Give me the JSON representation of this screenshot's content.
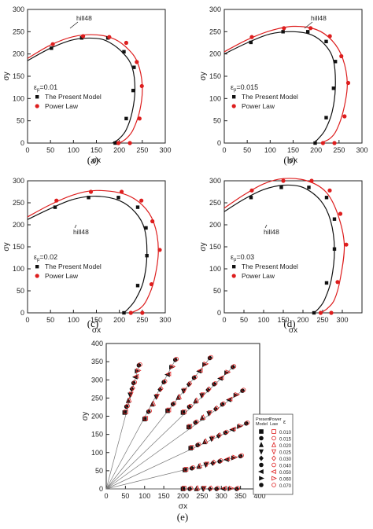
{
  "colors": {
    "model": "#111111",
    "power": "#dd1e1e",
    "axis": "#222222",
    "grid_ray": "#777777"
  },
  "chart_data": [
    {
      "panel": "(a)",
      "type": "scatter",
      "xlabel": "σx",
      "ylabel": "σy",
      "xlim": [
        0,
        300
      ],
      "ylim": [
        0,
        300
      ],
      "xticks": [
        "0",
        "50",
        "100",
        "150",
        "200",
        "250",
        "300"
      ],
      "yticks": [
        "0",
        "50",
        "100",
        "150",
        "200",
        "250",
        "300"
      ],
      "strain_label": "ε",
      "strain_value": "=0.01",
      "curve_label": "hill48",
      "legend": [
        "The Present Model",
        "Power Law"
      ],
      "series": [
        {
          "name": "The Present Model",
          "marker": "square",
          "x": [
            52,
            118,
            175,
            210,
            232,
            230,
            215,
            191
          ],
          "y": [
            213,
            236,
            236,
            205,
            170,
            118,
            55,
            0
          ]
        },
        {
          "name": "Power Law",
          "marker": "circle",
          "x": [
            55,
            121,
            178,
            215,
            238,
            249,
            244,
            223,
            198
          ],
          "y": [
            222,
            240,
            238,
            225,
            182,
            128,
            55,
            0,
            0
          ]
        }
      ],
      "curves": [
        {
          "series": "The Present Model",
          "x": [
            0,
            50,
            100,
            150,
            180,
            210,
            228,
            234,
            228,
            215,
            200,
            185
          ],
          "y": [
            185,
            213,
            232,
            235,
            225,
            200,
            170,
            120,
            70,
            30,
            10,
            0
          ]
        },
        {
          "series": "Power Law",
          "x": [
            0,
            50,
            100,
            150,
            190,
            220,
            240,
            250,
            245,
            230,
            215,
            200
          ],
          "y": [
            190,
            220,
            239,
            243,
            233,
            210,
            180,
            128,
            75,
            30,
            10,
            0
          ]
        }
      ]
    },
    {
      "panel": "(b)",
      "type": "scatter",
      "xlabel": "σx",
      "ylabel": "σy",
      "xlim": [
        0,
        300
      ],
      "ylim": [
        0,
        300
      ],
      "xticks": [
        "0",
        "50",
        "100",
        "150",
        "200",
        "250",
        "300"
      ],
      "yticks": [
        "0",
        "50",
        "100",
        "150",
        "200",
        "250",
        "300"
      ],
      "strain_label": "ε",
      "strain_value": "=0.015",
      "curve_label": "hill48",
      "legend": [
        "The Present Model",
        "Power Law"
      ],
      "series": [
        {
          "name": "The Present Model",
          "marker": "square",
          "x": [
            58,
            128,
            182,
            222,
            242,
            238,
            222,
            198
          ],
          "y": [
            226,
            250,
            250,
            228,
            183,
            123,
            57,
            0
          ]
        },
        {
          "name": "Power Law",
          "marker": "circle",
          "x": [
            60,
            130,
            188,
            230,
            255,
            270,
            262,
            240,
            215
          ],
          "y": [
            238,
            258,
            258,
            240,
            195,
            135,
            60,
            0,
            0
          ]
        }
      ],
      "curves": [
        {
          "series": "The Present Model",
          "x": [
            0,
            50,
            100,
            150,
            190,
            220,
            238,
            242,
            235,
            220,
            205,
            195
          ],
          "y": [
            200,
            225,
            245,
            250,
            243,
            220,
            185,
            125,
            70,
            30,
            10,
            0
          ]
        },
        {
          "series": "Power Law",
          "x": [
            0,
            50,
            100,
            150,
            200,
            235,
            258,
            268,
            260,
            245,
            230,
            210
          ],
          "y": [
            205,
            232,
            252,
            262,
            255,
            230,
            190,
            133,
            75,
            30,
            10,
            0
          ]
        }
      ]
    },
    {
      "panel": "(c)",
      "type": "scatter",
      "xlabel": "σx",
      "ylabel": "σy",
      "xlim": [
        0,
        300
      ],
      "ylim": [
        0,
        300
      ],
      "xticks": [
        "0",
        "50",
        "100",
        "150",
        "200",
        "250",
        "300"
      ],
      "yticks": [
        "0",
        "50",
        "100",
        "150",
        "200",
        "250",
        "300"
      ],
      "strain_label": "ε",
      "strain_value": "=0.02",
      "curve_label": "hill48",
      "legend": [
        "The Present Model",
        "Power Law"
      ],
      "series": [
        {
          "name": "The Present Model",
          "marker": "square",
          "x": [
            60,
            133,
            198,
            240,
            258,
            260,
            240,
            210
          ],
          "y": [
            240,
            262,
            262,
            240,
            193,
            130,
            62,
            0
          ]
        },
        {
          "name": "Power Law",
          "marker": "circle",
          "x": [
            63,
            138,
            205,
            248,
            272,
            288,
            270,
            250,
            225
          ],
          "y": [
            255,
            275,
            275,
            255,
            208,
            143,
            65,
            0,
            0
          ]
        }
      ],
      "curves": [
        {
          "series": "The Present Model",
          "x": [
            0,
            50,
            100,
            150,
            200,
            235,
            255,
            260,
            252,
            235,
            220,
            210
          ],
          "y": [
            212,
            237,
            258,
            265,
            255,
            228,
            190,
            130,
            70,
            30,
            10,
            0
          ]
        },
        {
          "series": "Power Law",
          "x": [
            0,
            50,
            100,
            150,
            210,
            250,
            275,
            285,
            276,
            260,
            245,
            225
          ],
          "y": [
            218,
            246,
            268,
            278,
            270,
            245,
            205,
            143,
            75,
            30,
            10,
            0
          ]
        }
      ]
    },
    {
      "panel": "(d)",
      "type": "scatter",
      "xlabel": "σx",
      "ylabel": "σy",
      "xlim": [
        0,
        350
      ],
      "ylim": [
        0,
        300
      ],
      "xticks": [
        "0",
        "50",
        "100",
        "150",
        "200",
        "250",
        "300"
      ],
      "yticks": [
        "0",
        "50",
        "100",
        "150",
        "200",
        "250",
        "300"
      ],
      "strain_label": "ε",
      "strain_value": "=0.03",
      "curve_label": "hill48",
      "legend": [
        "The Present Model",
        "Power Law"
      ],
      "series": [
        {
          "name": "The Present Model",
          "marker": "square",
          "x": [
            68,
            145,
            215,
            260,
            280,
            280,
            260,
            228
          ],
          "y": [
            262,
            285,
            285,
            262,
            213,
            145,
            68,
            0
          ]
        },
        {
          "name": "Power Law",
          "marker": "circle",
          "x": [
            70,
            150,
            222,
            268,
            295,
            310,
            288,
            272,
            245
          ],
          "y": [
            278,
            300,
            300,
            278,
            225,
            155,
            70,
            0,
            0
          ]
        }
      ],
      "curves": [
        {
          "series": "The Present Model",
          "x": [
            0,
            50,
            100,
            150,
            200,
            245,
            270,
            280,
            272,
            255,
            240,
            228
          ],
          "y": [
            230,
            258,
            280,
            290,
            285,
            255,
            210,
            145,
            75,
            30,
            10,
            0
          ]
        },
        {
          "series": "Power Law",
          "x": [
            0,
            50,
            100,
            150,
            210,
            258,
            288,
            305,
            295,
            280,
            262,
            245
          ],
          "y": [
            238,
            268,
            293,
            305,
            300,
            275,
            225,
            155,
            78,
            30,
            10,
            0
          ]
        }
      ]
    },
    {
      "panel": "(e)",
      "type": "scatter",
      "xlabel": "σx",
      "ylabel": "σy",
      "xlim": [
        0,
        400
      ],
      "ylim": [
        0,
        400
      ],
      "xticks": [
        "0",
        "50",
        "100",
        "150",
        "200",
        "250",
        "300",
        "350",
        "400"
      ],
      "yticks": [
        "0",
        "50",
        "100",
        "150",
        "200",
        "250",
        "300",
        "350",
        "400"
      ],
      "legend_header": {
        "present": "Present Model",
        "power": "Power Law",
        "strain": "ε"
      },
      "strain_levels": [
        "0.010",
        "0.015",
        "0.020",
        "0.025",
        "0.030",
        "0.040",
        "0.050",
        "0.060",
        "0.070"
      ],
      "rays": [
        {
          "end": [
            85,
            340
          ],
          "start": [
            48,
            210
          ],
          "points": 9
        },
        {
          "end": [
            180,
            355
          ],
          "start": [
            100,
            192
          ],
          "points": 9
        },
        {
          "end": [
            270,
            360
          ],
          "start": [
            160,
            215
          ],
          "points": 9
        },
        {
          "end": [
            330,
            335
          ],
          "start": [
            200,
            210
          ],
          "points": 9
        },
        {
          "end": [
            355,
            270
          ],
          "start": [
            215,
            170
          ],
          "points": 9
        },
        {
          "end": [
            365,
            180
          ],
          "start": [
            220,
            112
          ],
          "points": 9
        },
        {
          "end": [
            350,
            90
          ],
          "start": [
            205,
            52
          ],
          "points": 9
        },
        {
          "end": [
            340,
            0
          ],
          "start": [
            200,
            0
          ],
          "points": 9
        }
      ]
    }
  ],
  "captions": [
    "(a)",
    "(b)",
    "(c)",
    "(d)",
    "(e)"
  ]
}
